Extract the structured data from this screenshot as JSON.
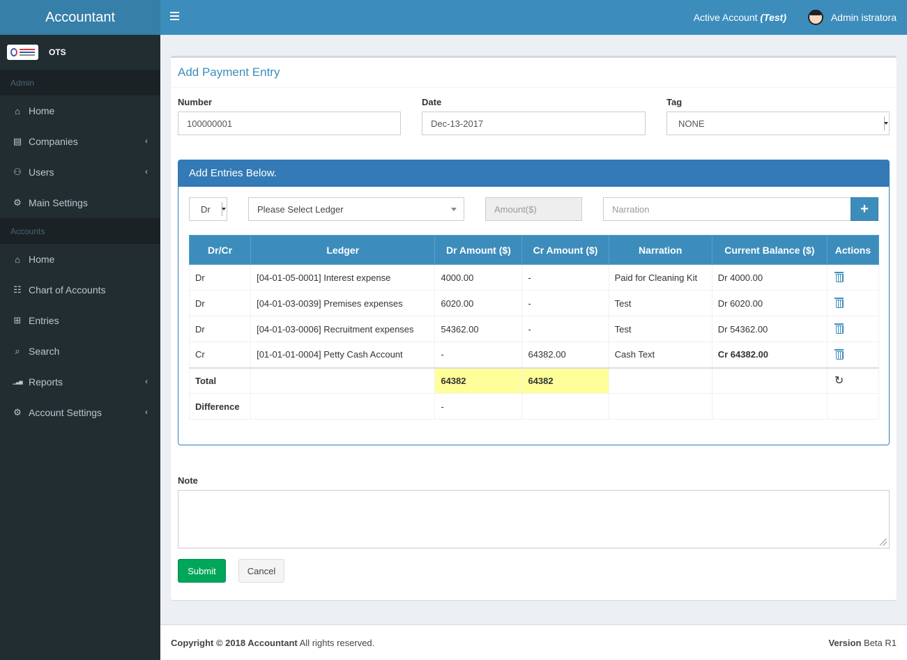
{
  "app": {
    "title": "Accountant"
  },
  "company": {
    "name": "OTS"
  },
  "sidebar": {
    "admin_header": "Admin",
    "admin_items": [
      {
        "label": "Home",
        "icon": "home-icon",
        "has_submenu": false
      },
      {
        "label": "Companies",
        "icon": "address-book-icon",
        "has_submenu": true
      },
      {
        "label": "Users",
        "icon": "users-icon",
        "has_submenu": true
      },
      {
        "label": "Main Settings",
        "icon": "cogs-icon",
        "has_submenu": false
      }
    ],
    "accounts_header": "Accounts",
    "accounts_items": [
      {
        "label": "Home",
        "icon": "home-icon",
        "has_submenu": false
      },
      {
        "label": "Chart of Accounts",
        "icon": "sitemap-icon",
        "has_submenu": false
      },
      {
        "label": "Entries",
        "icon": "plus-square-icon",
        "has_submenu": false
      },
      {
        "label": "Search",
        "icon": "search-icon",
        "has_submenu": false
      },
      {
        "label": "Reports",
        "icon": "bar-chart-icon",
        "has_submenu": true
      },
      {
        "label": "Account Settings",
        "icon": "gear-icon",
        "has_submenu": true
      }
    ]
  },
  "topbar": {
    "active_account_label": "Active Account",
    "active_account_name": "(Test)",
    "user_name": "Admin istratora"
  },
  "form": {
    "title": "Add Payment Entry",
    "number_label": "Number",
    "number_value": "100000001",
    "date_label": "Date",
    "date_value": "Dec-13-2017",
    "tag_label": "Tag",
    "tag_value": "NONE"
  },
  "entries_panel": {
    "heading": "Add Entries Below.",
    "drcr_value": "Dr",
    "ledger_placeholder": "Please Select Ledger",
    "amount_placeholder": "Amount($)",
    "narration_placeholder": "Narration",
    "add_button": "+"
  },
  "table": {
    "headers": [
      "Dr/Cr",
      "Ledger",
      "Dr Amount ($)",
      "Cr Amount ($)",
      "Narration",
      "Current Balance ($)",
      "Actions"
    ],
    "rows": [
      {
        "drcr": "Dr",
        "ledger": "[04-01-05-0001] Interest expense",
        "dr": "4000.00",
        "cr": "-",
        "narration": "Paid for Cleaning Kit",
        "balance": "Dr 4000.00",
        "negative": false
      },
      {
        "drcr": "Dr",
        "ledger": "[04-01-03-0039] Premises expenses",
        "dr": "6020.00",
        "cr": "-",
        "narration": "Test",
        "balance": "Dr 6020.00",
        "negative": false
      },
      {
        "drcr": "Dr",
        "ledger": "[04-01-03-0006] Recruitment expenses",
        "dr": "54362.00",
        "cr": "-",
        "narration": "Test",
        "balance": "Dr 54362.00",
        "negative": false
      },
      {
        "drcr": "Cr",
        "ledger": "[01-01-01-0004] Petty Cash Account",
        "dr": "-",
        "cr": "64382.00",
        "narration": "Cash Text",
        "balance": "Cr 64382.00",
        "negative": true
      }
    ],
    "total_label": "Total",
    "total_dr": "64382",
    "total_cr": "64382",
    "difference_label": "Difference",
    "difference_value": "-",
    "negative_color": "#dd0000",
    "highlight_color": "#ffff99"
  },
  "note": {
    "label": "Note",
    "value": ""
  },
  "buttons": {
    "submit": "Submit",
    "cancel": "Cancel"
  },
  "footer": {
    "copyright": "Copyright © 2018 Accountant",
    "rights": " All rights reserved.",
    "version_label": "Version",
    "version_value": " Beta R1"
  },
  "colors": {
    "sidebar": "#222d32",
    "topbar": "#3c8dbc",
    "brand": "#367fa9",
    "submit": "#00a65a"
  }
}
